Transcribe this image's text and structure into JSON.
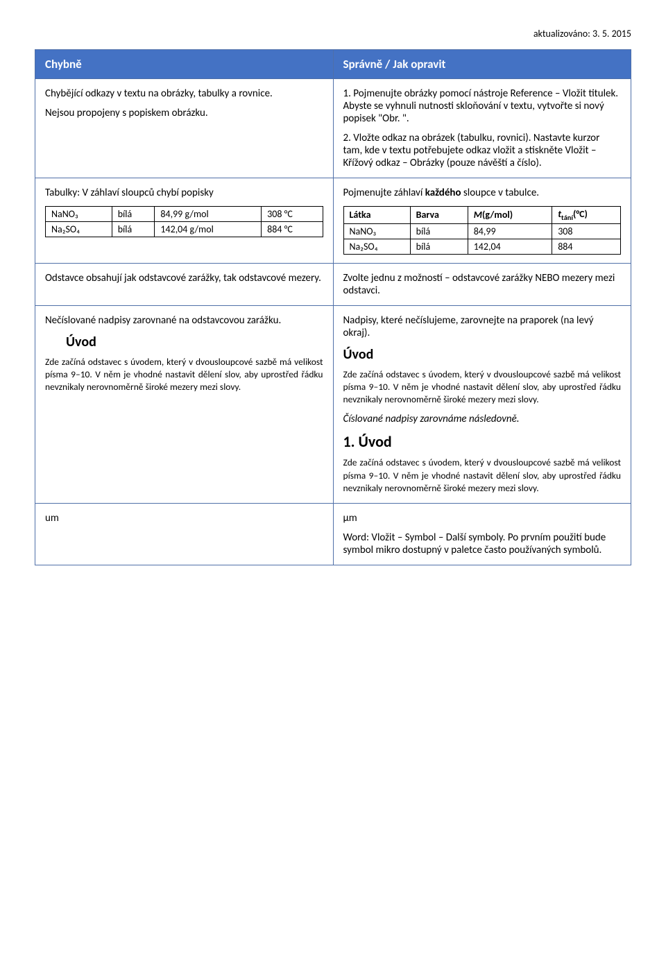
{
  "update_line": "aktualizováno: 3. 5. 2015",
  "header": {
    "left": "Chybně",
    "right": "Správně / Jak opravit"
  },
  "row1": {
    "left_p1": "Chybějící odkazy v textu na obrázky, tabulky a rovnice.",
    "left_p2": "Nejsou propojeny s popiskem obrázku.",
    "right_p1": "1. Pojmenujte obrázky pomocí nástroje Reference – Vložit titulek. Abyste se vyhnuli nutnosti skloňování v textu, vytvořte si nový popisek \"Obr. \".",
    "right_p2": "2. Vložte odkaz na obrázek (tabulku, rovnici). Nastavte kurzor tam, kde v textu potřebujete odkaz vložit a stiskněte Vložit – Křížový odkaz – Obrázky (pouze návěští a číslo)."
  },
  "row2": {
    "left_title": "Tabulky: V záhlaví sloupců chybí popisky",
    "left_table": {
      "rows": [
        [
          "NaNO₃",
          "bílá",
          "84,99 g/mol",
          "308 °C"
        ],
        [
          "Na₂SO₄",
          "bílá",
          "142,04 g/mol",
          "884 °C"
        ]
      ]
    },
    "right_title_pre": "Pojmenujte záhlaví ",
    "right_title_bold": "každého",
    "right_title_post": " sloupce v tabulce.",
    "right_table": {
      "headers": [
        "Látka",
        "Barva",
        "M(g/mol)",
        "ttání(°C)"
      ],
      "header_html": {
        "c0": "Látka",
        "c1": "Barva",
        "c2_ital": "M",
        "c2_rest": "(g/mol)",
        "c3_ital": "t",
        "c3_sub": "tání",
        "c3_rest": "(°C)"
      },
      "rows": [
        [
          "NaNO₃",
          "bílá",
          "84,99",
          "308"
        ],
        [
          "Na₂SO₄",
          "bílá",
          "142,04",
          "884"
        ]
      ]
    }
  },
  "row3": {
    "left": "Odstavce obsahují jak odstavcové zarážky, tak odstavcové mezery.",
    "right": "Zvolte jednu z možností – odstavcové zarážky NEBO mezery mezi odstavci."
  },
  "row4": {
    "left_p1": "Nečíslované nadpisy zarovnané na odstavcovou zarážku.",
    "left_heading": "Úvod",
    "left_p2": "Zde začíná odstavec s úvodem, který v dvousloupcové sazbě má velikost písma 9–10. V něm je vhodné nastavit dělení slov, aby uprostřed řádku nevznikaly nerovnoměrně široké mezery mezi slovy.",
    "right_p1": "Nadpisy, které nečíslujeme, zarovnejte na praporek (na levý okraj).",
    "right_heading1": "Úvod",
    "right_p2": "Zde začíná odstavec s úvodem, který v dvousloupcové sazbě má velikost písma 9–10. V něm je vhodné nastavit dělení slov, aby uprostřed řádku nevznikaly nerovnoměrně široké mezery mezi slovy.",
    "right_note": "Číslované nadpisy zarovnáme následovně.",
    "right_heading2": "1. Úvod",
    "right_p3": "Zde začíná odstavec s úvodem, který v dvousloupcové sazbě má velikost písma 9–10. V něm je vhodné nastavit dělení slov, aby uprostřed řádku nevznikaly nerovnoměrně široké mezery mezi slovy."
  },
  "row5": {
    "left": "um",
    "right_p1": "µm",
    "right_p2": "Word: Vložit – Symbol – Další symboly. Po prvním použití bude symbol mikro dostupný v paletce často používaných symbolů."
  },
  "colors": {
    "header_bg": "#4472c4",
    "header_text": "#ffffff",
    "border": "#4f6fa8",
    "body_bg": "#ffffff",
    "text": "#000000"
  }
}
